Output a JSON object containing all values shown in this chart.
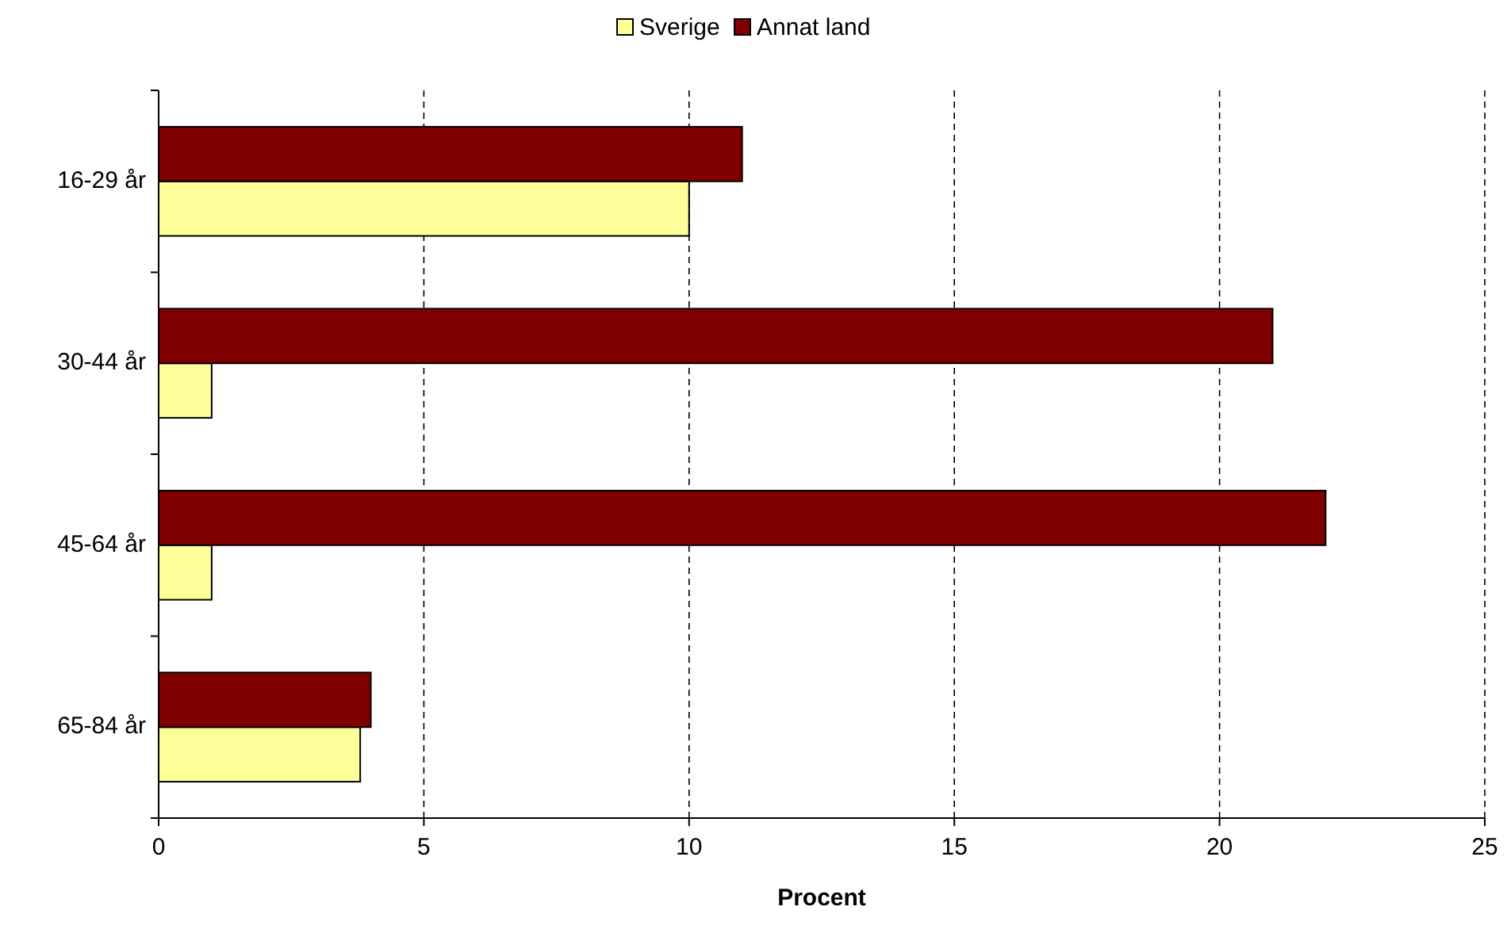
{
  "chart_data": {
    "type": "bar",
    "orientation": "horizontal",
    "categories": [
      "16-29 år",
      "30-44 år",
      "45-64 år",
      "65-84 år"
    ],
    "series": [
      {
        "name": "Sverige",
        "color": "#ffff99",
        "values": [
          10,
          1,
          1,
          3.8
        ]
      },
      {
        "name": "Annat land",
        "color": "#800000",
        "values": [
          11,
          21,
          22,
          4
        ]
      }
    ],
    "xlabel": "Procent",
    "xlim": [
      0,
      25
    ],
    "xticks": [
      0,
      5,
      10,
      15,
      20,
      25
    ],
    "grid": "x",
    "legend": "top"
  }
}
